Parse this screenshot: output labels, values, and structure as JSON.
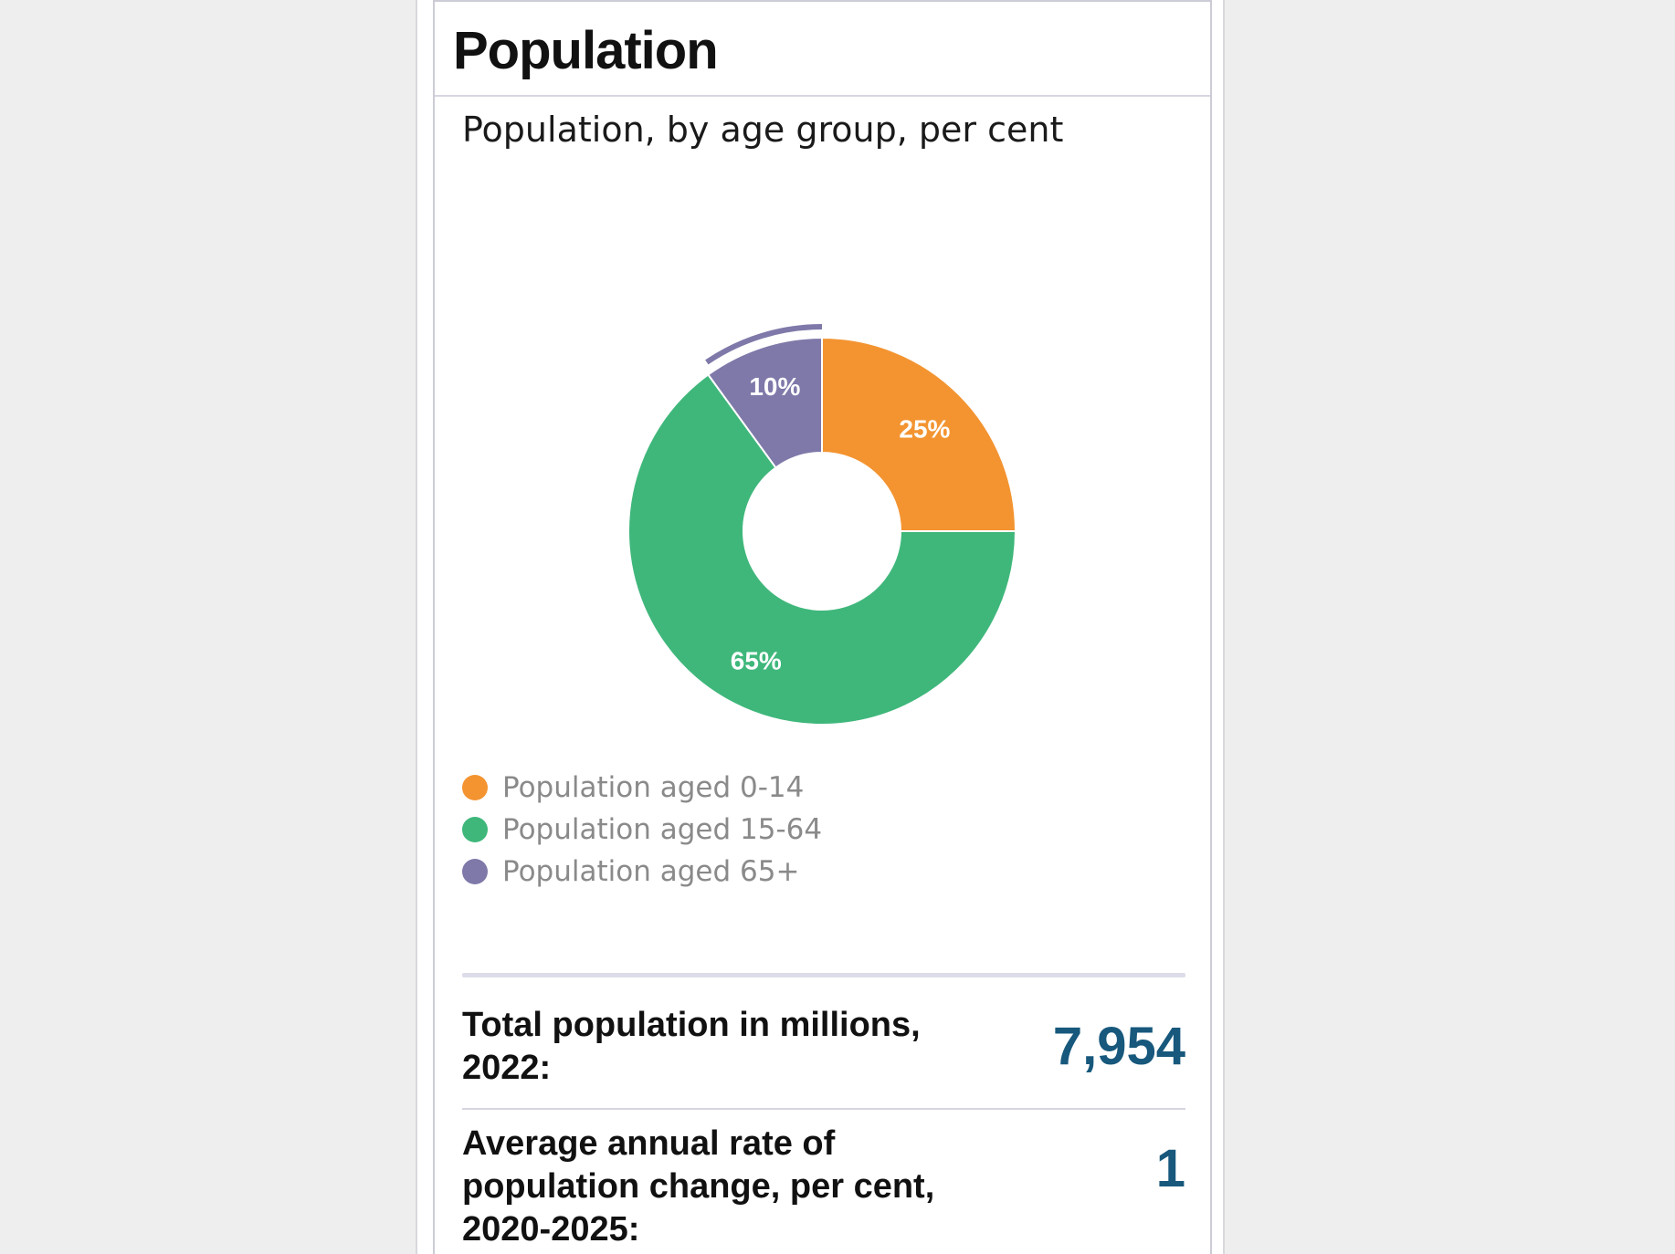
{
  "card": {
    "title": "Population",
    "subtitle": "Population, by age group, per cent"
  },
  "chart_data": {
    "type": "pie",
    "style": "donut",
    "title": "Population, by age group, per cent",
    "legend_position": "bottom-left",
    "slices": [
      {
        "name": "Population aged 0-14",
        "value": 25,
        "label": "25%",
        "color": "#f39431"
      },
      {
        "name": "Population aged 15-64",
        "value": 65,
        "label": "65%",
        "color": "#3fb77b"
      },
      {
        "name": "Population aged 65+",
        "value": 10,
        "label": "10%",
        "color": "#7e79a9",
        "highlighted": true
      }
    ]
  },
  "stats": [
    {
      "label": "Total population in millions, 2022:",
      "value": "7,954"
    },
    {
      "label": "Average annual rate of population change, per cent, 2020-2025:",
      "value": "1"
    }
  ],
  "colors": {
    "accent_value": "#17587c",
    "background": "#eeeeee"
  }
}
